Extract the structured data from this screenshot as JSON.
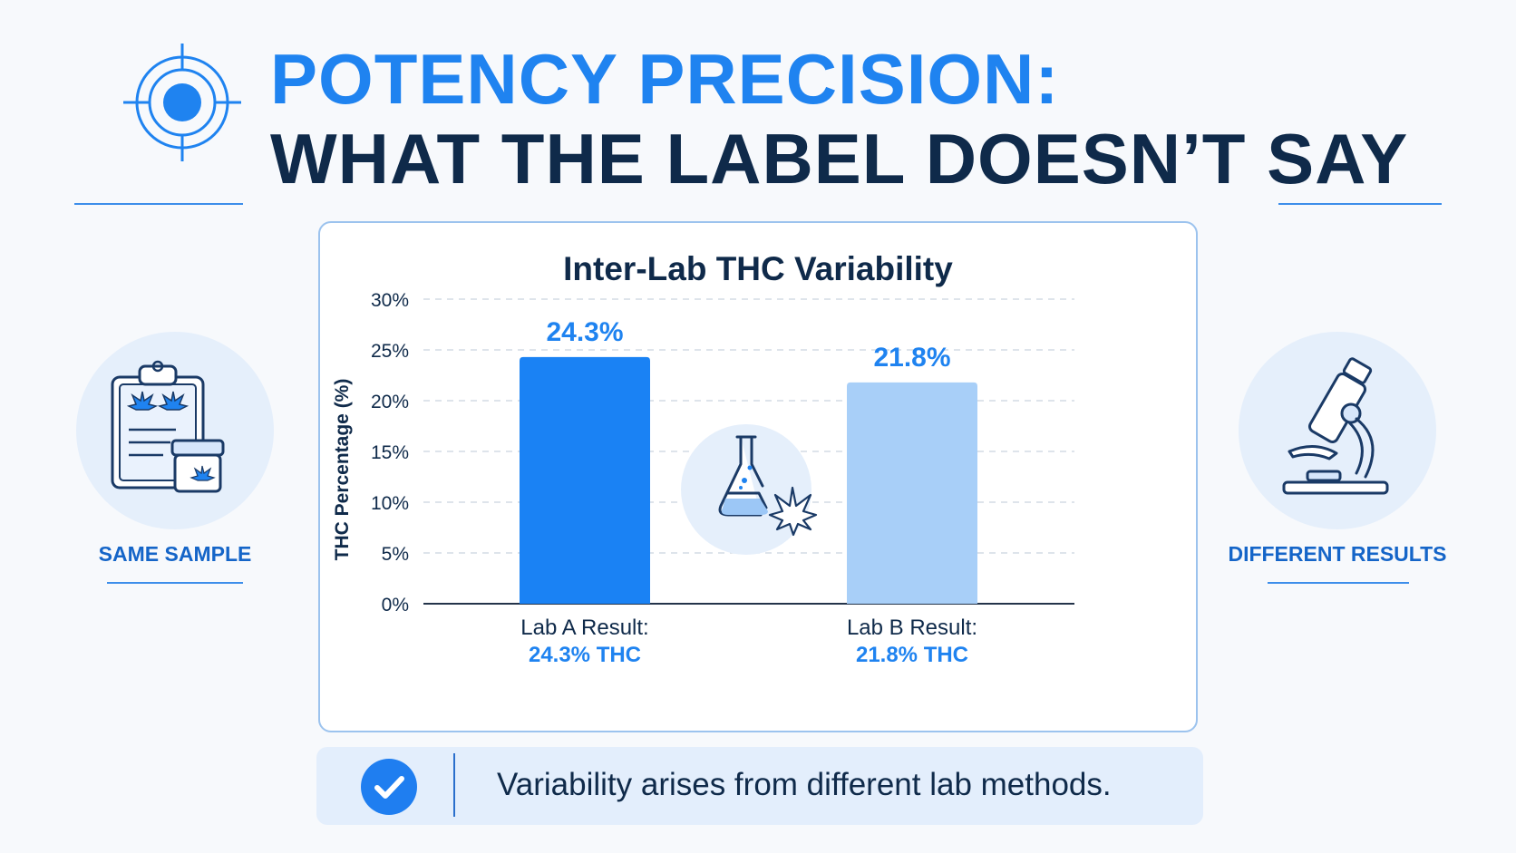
{
  "header": {
    "title_line1": "POTENCY PRECISION:",
    "title_line2": "WHAT THE LABEL DOESN’T SAY",
    "icon": "target-icon"
  },
  "left_panel": {
    "icon": "clipboard-jar-icon",
    "caption": "SAME SAMPLE"
  },
  "right_panel": {
    "icon": "microscope-icon",
    "caption": "DIFFERENT RESULTS"
  },
  "center_icon": "flask-leaf-icon",
  "colors": {
    "accent": "#1f83f0",
    "dark_text": "#0f2a4a",
    "bar_a": "#1a82f4",
    "bar_b": "#a8cff8",
    "caption_blue": "#1565c8"
  },
  "footer": {
    "icon": "check-icon",
    "text": "Variability arises from different lab methods."
  },
  "chart_data": {
    "type": "bar",
    "title": "Inter-Lab THC Variability",
    "ylabel": "THC Percentage (%)",
    "xlabel": "",
    "ylim": [
      0,
      30
    ],
    "yticks": [
      0,
      5,
      10,
      15,
      20,
      25,
      30
    ],
    "ytick_labels": [
      "0%",
      "5%",
      "10%",
      "15%",
      "20%",
      "25%",
      "30%"
    ],
    "grid": true,
    "categories": [
      "Lab A Result:",
      "Lab B Result:"
    ],
    "category_sublabels": [
      "24.3% THC",
      "21.8% THC"
    ],
    "values": [
      24.3,
      21.8
    ],
    "data_labels": [
      "24.3%",
      "21.8%"
    ]
  }
}
